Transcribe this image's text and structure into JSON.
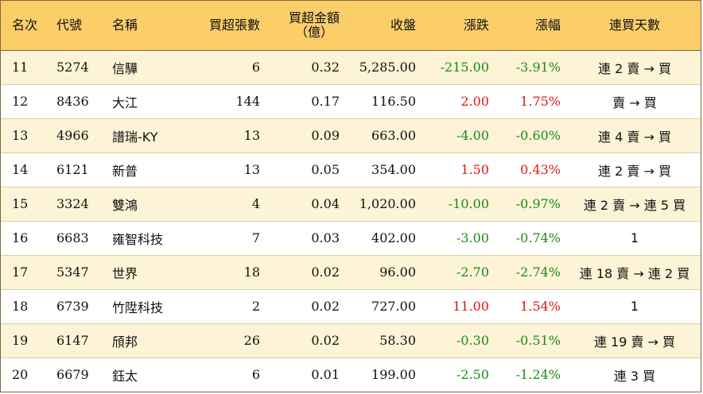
{
  "header": {
    "rank": "名次",
    "code": "代號",
    "name": "名稱",
    "net_lots": "買超張數",
    "net_amount_line1": "買超金額",
    "net_amount_line2": "（億）",
    "close": "收盤",
    "change": "漲跌",
    "change_pct": "漲幅",
    "streak": "連買天數"
  },
  "colors": {
    "header_bg": "#fbce6a",
    "row_alt_bg": "#fdf3d6",
    "up": "#e01818",
    "down": "#1a8a1a"
  },
  "rows": [
    {
      "rank": "11",
      "code": "5274",
      "name": "信驊",
      "net_lots": "6",
      "net_amount": "0.32",
      "close": "5,285.00",
      "change": "-215.00",
      "change_pct": "-3.91%",
      "streak": "連 2 賣 → 買"
    },
    {
      "rank": "12",
      "code": "8436",
      "name": "大江",
      "net_lots": "144",
      "net_amount": "0.17",
      "close": "116.50",
      "change": "2.00",
      "change_pct": "1.75%",
      "streak": "賣 → 買"
    },
    {
      "rank": "13",
      "code": "4966",
      "name": "譜瑞-KY",
      "net_lots": "13",
      "net_amount": "0.09",
      "close": "663.00",
      "change": "-4.00",
      "change_pct": "-0.60%",
      "streak": "連 4 賣 → 買"
    },
    {
      "rank": "14",
      "code": "6121",
      "name": "新普",
      "net_lots": "13",
      "net_amount": "0.05",
      "close": "354.00",
      "change": "1.50",
      "change_pct": "0.43%",
      "streak": "連 2 賣 → 買"
    },
    {
      "rank": "15",
      "code": "3324",
      "name": "雙鴻",
      "net_lots": "4",
      "net_amount": "0.04",
      "close": "1,020.00",
      "change": "-10.00",
      "change_pct": "-0.97%",
      "streak": "連 2 賣 → 連 5 買"
    },
    {
      "rank": "16",
      "code": "6683",
      "name": "雍智科技",
      "net_lots": "7",
      "net_amount": "0.03",
      "close": "402.00",
      "change": "-3.00",
      "change_pct": "-0.74%",
      "streak": "1"
    },
    {
      "rank": "17",
      "code": "5347",
      "name": "世界",
      "net_lots": "18",
      "net_amount": "0.02",
      "close": "96.00",
      "change": "-2.70",
      "change_pct": "-2.74%",
      "streak": "連 18 賣 → 連 2 買"
    },
    {
      "rank": "18",
      "code": "6739",
      "name": "竹陞科技",
      "net_lots": "2",
      "net_amount": "0.02",
      "close": "727.00",
      "change": "11.00",
      "change_pct": "1.54%",
      "streak": "1"
    },
    {
      "rank": "19",
      "code": "6147",
      "name": "頎邦",
      "net_lots": "26",
      "net_amount": "0.02",
      "close": "58.30",
      "change": "-0.30",
      "change_pct": "-0.51%",
      "streak": "連 19 賣 → 買"
    },
    {
      "rank": "20",
      "code": "6679",
      "name": "鈺太",
      "net_lots": "6",
      "net_amount": "0.01",
      "close": "199.00",
      "change": "-2.50",
      "change_pct": "-1.24%",
      "streak": "連 3 買"
    }
  ]
}
